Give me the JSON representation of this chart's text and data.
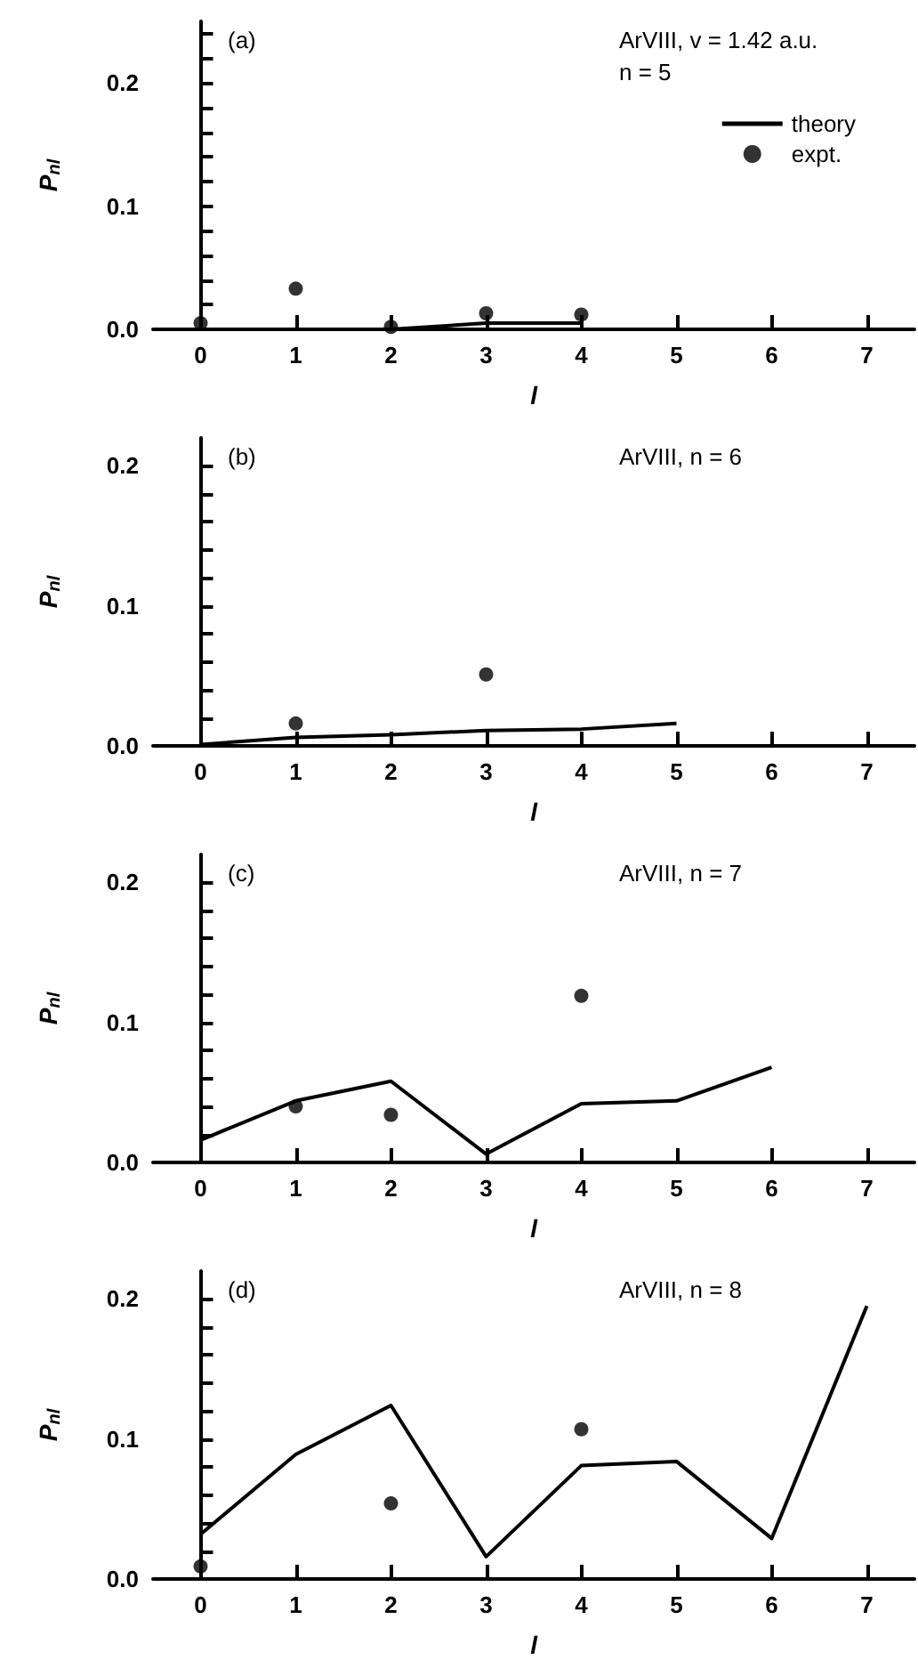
{
  "chart_data": [
    {
      "type": "line",
      "annotations": [
        "(a)",
        "ArVIII, v = 1.42 a.u.",
        "n = 5"
      ],
      "xlabel": "l",
      "ylabel": "P$_{nl}$",
      "xlim": [
        -0.5,
        7.5
      ],
      "xticks": [
        0,
        1,
        2,
        3,
        4,
        5,
        6,
        7
      ],
      "ylim": [
        0,
        0.25
      ],
      "yticks": [
        {
          "value": 0,
          "label": "0.0"
        },
        {
          "value": 0.02,
          "label": null
        },
        {
          "value": 0.04,
          "label": null
        },
        {
          "value": 0.06,
          "label": null
        },
        {
          "value": 0.08,
          "label": null
        },
        {
          "value": 0.1,
          "label": "0.1"
        },
        {
          "value": 0.12,
          "label": null
        },
        {
          "value": 0.14,
          "label": null
        },
        {
          "value": 0.16,
          "label": null
        },
        {
          "value": 0.18,
          "label": null
        },
        {
          "value": 0.2,
          "label": "0.2"
        },
        {
          "value": 0.22,
          "label": null
        },
        {
          "value": 0.24,
          "label": null
        }
      ],
      "legend": "top right",
      "series": [
        {
          "name": "theory",
          "color": "#000000",
          "marker": "none",
          "line_style": "solid",
          "x": [
            2,
            3,
            4
          ],
          "values": [
            0,
            0.005,
            0.005
          ]
        },
        {
          "name": "expt.",
          "type": "scatter",
          "color": "#000000",
          "marker": "circle",
          "x": [
            0,
            1,
            2,
            3,
            4
          ],
          "values": [
            0.005,
            0.033,
            0.002,
            0.013,
            0.012
          ]
        }
      ]
    },
    {
      "type": "line",
      "annotations": [
        "(b)",
        "ArVIII, n = 6"
      ],
      "xlabel": "l",
      "ylabel": "P$_{nl}$",
      "xlim": [
        -0.5,
        7.5
      ],
      "xticks": [
        0,
        1,
        2,
        3,
        4,
        5,
        6,
        7
      ],
      "ylim": [
        0,
        0.22
      ],
      "yticks": [
        {
          "value": 0,
          "label": "0.0"
        },
        {
          "value": 0.02,
          "label": null
        },
        {
          "value": 0.04,
          "label": null
        },
        {
          "value": 0.06,
          "label": null
        },
        {
          "value": 0.08,
          "label": null
        },
        {
          "value": 0.1,
          "label": "0.1"
        },
        {
          "value": 0.12,
          "label": null
        },
        {
          "value": 0.14,
          "label": null
        },
        {
          "value": 0.16,
          "label": null
        },
        {
          "value": 0.18,
          "label": null
        },
        {
          "value": 0.2,
          "label": "0.2"
        }
      ],
      "legend": false,
      "series": [
        {
          "color": "#000000",
          "marker": "none",
          "line_style": "solid",
          "x": [
            0,
            1,
            2,
            3,
            4,
            5
          ],
          "values": [
            0.001,
            0.006,
            0.008,
            0.011,
            0.012,
            0.016
          ]
        },
        {
          "type": "scatter",
          "color": "#000000",
          "marker": "circle",
          "x": [
            1,
            3
          ],
          "values": [
            0.016,
            0.051
          ]
        }
      ]
    },
    {
      "type": "line",
      "annotations": [
        "(c)",
        "ArVIII, n = 7"
      ],
      "xlabel": "l",
      "ylabel": "P$_{nl}$",
      "xlim": [
        -0.5,
        7.5
      ],
      "xticks": [
        0,
        1,
        2,
        3,
        4,
        5,
        6,
        7
      ],
      "ylim": [
        0,
        0.22
      ],
      "yticks": [
        {
          "value": 0,
          "label": "0.0"
        },
        {
          "value": 0.02,
          "label": null
        },
        {
          "value": 0.04,
          "label": null
        },
        {
          "value": 0.06,
          "label": null
        },
        {
          "value": 0.08,
          "label": null
        },
        {
          "value": 0.1,
          "label": "0.1"
        },
        {
          "value": 0.12,
          "label": null
        },
        {
          "value": 0.14,
          "label": null
        },
        {
          "value": 0.16,
          "label": null
        },
        {
          "value": 0.18,
          "label": null
        },
        {
          "value": 0.2,
          "label": "0.2"
        }
      ],
      "legend": false,
      "series": [
        {
          "color": "#000000",
          "marker": "none",
          "line_style": "solid",
          "x": [
            0,
            1,
            2,
            3,
            4,
            5,
            6
          ],
          "values": [
            0.016,
            0.044,
            0.058,
            0.006,
            0.042,
            0.044,
            0.068
          ]
        },
        {
          "type": "scatter",
          "color": "#000000",
          "marker": "circle",
          "x": [
            1,
            2,
            4
          ],
          "values": [
            0.04,
            0.034,
            0.119
          ]
        }
      ]
    },
    {
      "type": "line",
      "annotations": [
        "(d)",
        "ArVIII, n = 8"
      ],
      "xlabel": "l",
      "ylabel": "P$_{nl}$",
      "xlim": [
        -0.5,
        7.5
      ],
      "xticks": [
        0,
        1,
        2,
        3,
        4,
        5,
        6,
        7
      ],
      "ylim": [
        0,
        0.22
      ],
      "yticks": [
        {
          "value": 0,
          "label": "0.0"
        },
        {
          "value": 0.02,
          "label": null
        },
        {
          "value": 0.04,
          "label": null
        },
        {
          "value": 0.06,
          "label": null
        },
        {
          "value": 0.08,
          "label": null
        },
        {
          "value": 0.1,
          "label": "0.1"
        },
        {
          "value": 0.12,
          "label": null
        },
        {
          "value": 0.14,
          "label": null
        },
        {
          "value": 0.16,
          "label": null
        },
        {
          "value": 0.18,
          "label": null
        },
        {
          "value": 0.2,
          "label": "0.2"
        }
      ],
      "legend": false,
      "series": [
        {
          "color": "#000000",
          "marker": "none",
          "line_style": "solid",
          "x": [
            0,
            1,
            2,
            3,
            4,
            5,
            6,
            7
          ],
          "values": [
            0.032,
            0.089,
            0.124,
            0.016,
            0.081,
            0.084,
            0.029,
            0.195
          ]
        },
        {
          "type": "scatter",
          "color": "#000000",
          "marker": "circle",
          "x": [
            0,
            2,
            4
          ],
          "values": [
            0.009,
            0.054,
            0.107
          ]
        }
      ]
    }
  ]
}
